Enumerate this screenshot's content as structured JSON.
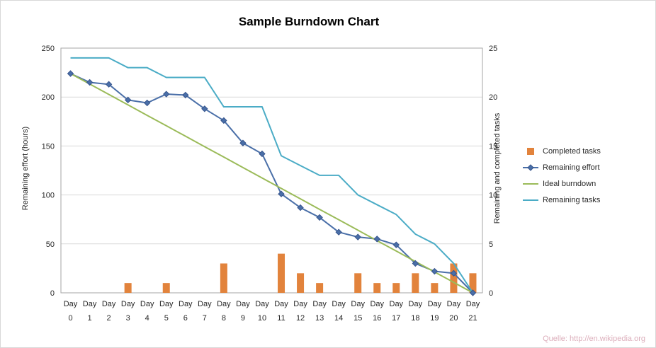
{
  "source_note": "Quelle: http://en.wikipedia.org",
  "source_note_color": "#dcaebb",
  "chart_data": {
    "type": "combo-bar-line",
    "title": "Sample Burndown Chart",
    "x_label_prefix": "Day",
    "x_days": [
      0,
      1,
      2,
      3,
      4,
      5,
      6,
      7,
      8,
      9,
      10,
      11,
      12,
      13,
      14,
      15,
      16,
      17,
      18,
      19,
      20,
      21
    ],
    "left_axis": {
      "label": "Remaining effort (hours)",
      "min": 0,
      "max": 250,
      "ticks": [
        0,
        50,
        100,
        150,
        200,
        250
      ]
    },
    "right_axis": {
      "label": "Remaining and completed tasks",
      "min": 0,
      "max": 25,
      "ticks": [
        0,
        5,
        10,
        15,
        20,
        25
      ]
    },
    "grid": true,
    "legend_position": "right",
    "series": [
      {
        "name": "Completed tasks",
        "type": "bar",
        "axis": "right",
        "color": "#e2833c",
        "values": [
          0,
          0,
          0,
          1,
          0,
          1,
          0,
          0,
          3,
          0,
          0,
          4,
          2,
          1,
          0,
          2,
          1,
          1,
          2,
          1,
          3,
          2
        ]
      },
      {
        "name": "Remaining effort",
        "type": "line",
        "marker": "diamond",
        "marker_border": "#36548c",
        "axis": "left",
        "color": "#4a6fa8",
        "values": [
          224,
          215,
          213,
          197,
          194,
          203,
          202,
          188,
          176,
          153,
          142,
          101,
          87,
          77,
          62,
          57,
          55,
          49,
          30,
          22,
          20,
          0
        ]
      },
      {
        "name": "Ideal burndown",
        "type": "line",
        "axis": "left",
        "color": "#9bbb59",
        "values": [
          224,
          213.3,
          202.7,
          192,
          181.3,
          170.7,
          160,
          149.3,
          138.7,
          128,
          117.3,
          106.7,
          96,
          85.3,
          74.7,
          64,
          53.3,
          42.7,
          32,
          21.3,
          10.7,
          0
        ]
      },
      {
        "name": "Remaining tasks",
        "type": "line",
        "axis": "right",
        "color": "#4bacc6",
        "values": [
          24,
          24,
          24,
          23,
          23,
          22,
          22,
          22,
          19,
          19,
          19,
          14,
          13,
          12,
          12,
          10,
          9,
          8,
          6,
          5,
          3,
          0
        ]
      }
    ]
  }
}
